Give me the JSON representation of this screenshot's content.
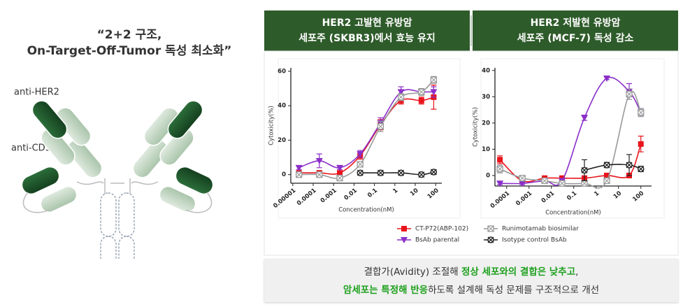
{
  "left_panel": {
    "title": [
      "“2+2 구조,",
      "On-Target-Off-Tumor 독성 최소화”"
    ],
    "labels": [
      "anti-HER2",
      "anti-CD3"
    ]
  },
  "chart_data": [
    {
      "type": "scatter",
      "title": [
        "HER2 고발현 유방암",
        "세포주 (SKBR3)에서 효능 유지"
      ],
      "x_label": "Concentration(nM)",
      "y_label": "Cytoxicity(%)",
      "log_x": true,
      "x": [
        2e-05,
        0.0002,
        0.002,
        0.02,
        0.2,
        2,
        20,
        80
      ],
      "xlim": [
        8e-06,
        200
      ],
      "xticks": [
        1e-05,
        0.0001,
        0.001,
        0.01,
        0.1,
        1,
        10,
        100
      ],
      "ylim": [
        -5,
        62
      ],
      "yticks": [
        0,
        20,
        40,
        60
      ],
      "series": [
        {
          "name": "CT-P72(ABP-102)",
          "color": "#e8141c",
          "marker": "square",
          "values": [
            1,
            1,
            1,
            11,
            29,
            43,
            43,
            45
          ],
          "errors": [
            1,
            1,
            1,
            2,
            3,
            2,
            2,
            7
          ]
        },
        {
          "name": "BsAb parental",
          "color": "#8b2fc9",
          "marker": "triangle",
          "values": [
            4,
            8,
            4,
            12,
            30,
            48,
            48,
            48
          ],
          "errors": [
            1,
            4,
            1,
            2,
            3,
            3,
            2,
            3
          ]
        },
        {
          "name": "Runimotamab biosimilar",
          "color": "#999999",
          "marker": "box-x",
          "values": [
            0,
            0,
            -2,
            6,
            28,
            45,
            48,
            55
          ],
          "errors": [
            1,
            1,
            1,
            1,
            3,
            2,
            2,
            2
          ]
        },
        {
          "name": "Isotype control BsAb",
          "color": "#222222",
          "marker": "circle-x",
          "values": [
            null,
            null,
            null,
            1,
            1,
            1,
            0,
            1.5
          ],
          "errors": [
            null,
            null,
            null,
            0.5,
            0.5,
            0.5,
            0.5,
            0.5
          ]
        }
      ]
    },
    {
      "type": "scatter",
      "title": [
        "HER2 저발현 유방암",
        "세포주 (MCF-7) 독성 감소"
      ],
      "x_label": "Concentration(nM)",
      "y_label": "Cytoxicity(%)",
      "log_x": true,
      "x": [
        5e-05,
        0.0005,
        0.005,
        0.03,
        0.3,
        3,
        30,
        100
      ],
      "xlim": [
        3e-05,
        300
      ],
      "xticks": [
        0.0001,
        0.001,
        0.01,
        0.1,
        1,
        10,
        100
      ],
      "ylim": [
        -4,
        41
      ],
      "yticks": [
        0,
        10,
        20,
        30,
        40
      ],
      "series": [
        {
          "color": "#e8141c",
          "marker": "square",
          "values": [
            6,
            -2,
            -1,
            -1,
            -1,
            0,
            0,
            12
          ],
          "errors": [
            1.5,
            0.5,
            0.5,
            0.5,
            0.5,
            0.5,
            0.5,
            3
          ]
        },
        {
          "color": "#8b2fc9",
          "marker": "triangle",
          "values": [
            -3,
            -3,
            -2,
            -2,
            22,
            37,
            32,
            24
          ],
          "errors": [
            0.5,
            0.5,
            0.5,
            0.5,
            1,
            0.5,
            3,
            1.5
          ]
        },
        {
          "color": "#999999",
          "marker": "box-x",
          "values": [
            2.5,
            -1,
            -2,
            -3,
            -3,
            -2,
            31,
            24
          ],
          "errors": [
            1.5,
            0.5,
            0.5,
            0.5,
            0.5,
            0.5,
            2,
            1.5
          ]
        },
        {
          "color": "#222222",
          "marker": "circle-x",
          "values": [
            null,
            null,
            null,
            null,
            2,
            4,
            4,
            2.5
          ],
          "errors": [
            null,
            null,
            null,
            null,
            4,
            1,
            4,
            1
          ]
        }
      ]
    }
  ],
  "caption": [
    [
      {
        "text": "결합가(Avidity) 조절해 ",
        "highlight": false
      },
      {
        "text": "정상 세포와의 결합은 낮추고",
        "highlight": true
      },
      {
        "text": ",",
        "highlight": false
      }
    ],
    [
      {
        "text": "암세포는 특정해 반응",
        "highlight": true
      },
      {
        "text": "하도록 설계해 독성 문제를 구조적으로 개선",
        "highlight": false
      }
    ]
  ]
}
